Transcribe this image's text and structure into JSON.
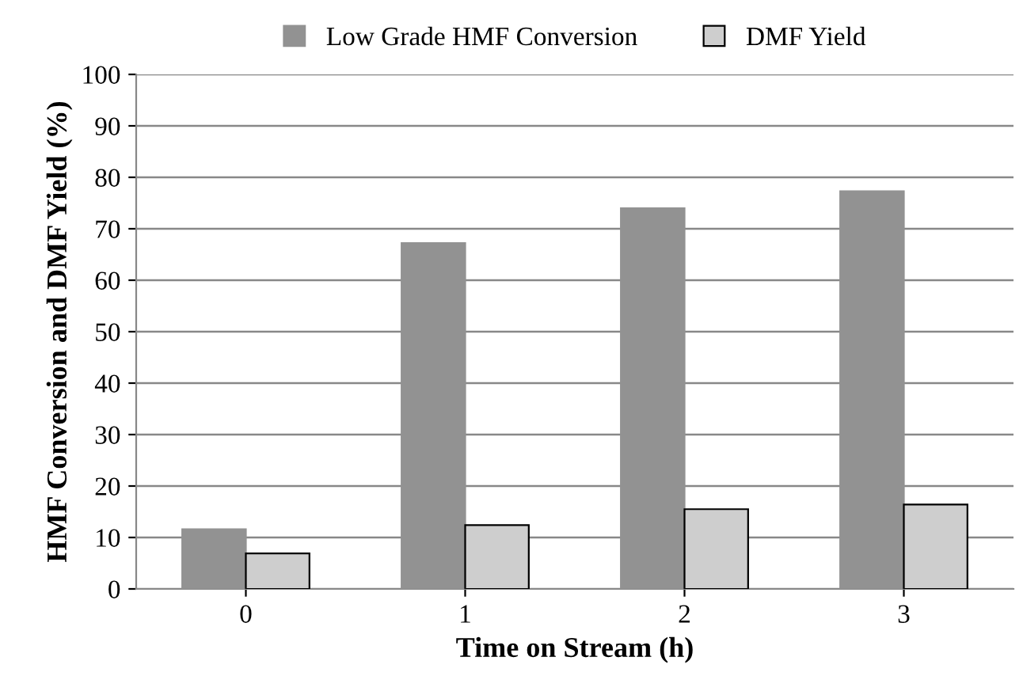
{
  "chart_data": {
    "type": "bar",
    "xlabel": "Time on Stream (h)",
    "ylabel": "HMF Conversion and DMF Yield (%)",
    "categories": [
      "0",
      "1",
      "2",
      "3"
    ],
    "series": [
      {
        "name": "Low Grade HMF Conversion",
        "color": "#929292",
        "values": [
          11.6,
          67.2,
          74.0,
          77.3
        ]
      },
      {
        "name": "DMF Yield",
        "color": "#cecece",
        "values": [
          6.9,
          12.4,
          15.5,
          16.4
        ]
      }
    ],
    "ylim": [
      0,
      100
    ],
    "yticks": [
      0,
      10,
      20,
      30,
      40,
      50,
      60,
      70,
      80,
      90,
      100
    ],
    "grid": "y",
    "legend": "top"
  }
}
